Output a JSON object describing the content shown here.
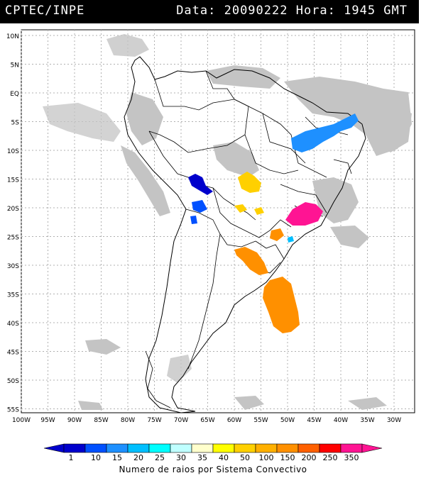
{
  "header": {
    "org": "CPTEC/INPE",
    "info": "Data: 20090222 Hora: 1945 GMT"
  },
  "map": {
    "lat_labels": [
      "10N",
      "5N",
      "EQ",
      "5S",
      "10S",
      "15S",
      "20S",
      "25S",
      "30S",
      "35S",
      "40S",
      "45S",
      "50S",
      "55S"
    ],
    "lon_labels": [
      "100W",
      "95W",
      "90W",
      "85W",
      "80W",
      "75W",
      "70W",
      "65W",
      "60W",
      "55W",
      "50W",
      "45W",
      "40W",
      "35W",
      "30W"
    ]
  },
  "legend": {
    "title": "Numero de raios por Sistema Convectivo",
    "labels": [
      "1",
      "10",
      "15",
      "20",
      "25",
      "30",
      "35",
      "40",
      "50",
      "100",
      "150",
      "200",
      "250",
      "350"
    ],
    "colors": [
      "#0000cc",
      "#0050ff",
      "#1e90ff",
      "#00bfff",
      "#00ffff",
      "#bfffff",
      "#ffffcc",
      "#ffff00",
      "#ffd000",
      "#ffb000",
      "#ff9000",
      "#ff6000",
      "#ff0000",
      "#ff1493"
    ]
  },
  "colors": {
    "cloud": "#c4c4c4",
    "coast": "#000000",
    "grid": "#b0b0b0"
  }
}
